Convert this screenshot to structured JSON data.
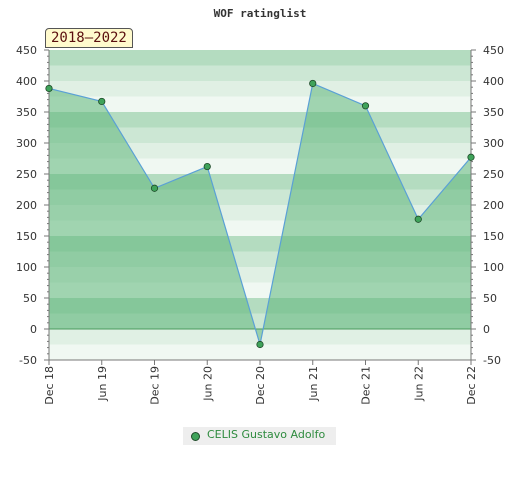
{
  "chart_data": {
    "type": "area",
    "title": "WOF ratinglist",
    "period_label": "2018–2022",
    "categories": [
      "Dec 18",
      "Jun 19",
      "Dec 19",
      "Jun 20",
      "Dec 20",
      "Jun 21",
      "Dec 21",
      "Jun 22",
      "Dec 22"
    ],
    "series": [
      {
        "name": "CELIS Gustavo Adolfo",
        "values": [
          388,
          367,
          227,
          262,
          -25,
          396,
          360,
          177,
          277
        ]
      }
    ],
    "ylim": [
      -50,
      450
    ],
    "yticks": [
      -50,
      0,
      50,
      100,
      150,
      200,
      250,
      300,
      350,
      400,
      450
    ],
    "y_axis_both_sides": true,
    "grid": true,
    "legend_position": "bottom-center",
    "colors": {
      "line": "#5aa0d6",
      "fill": "#5fb67a",
      "marker": "#3fa35a",
      "period_box_bg": "#fffacd",
      "period_box_text": "#5b0f0f"
    }
  }
}
